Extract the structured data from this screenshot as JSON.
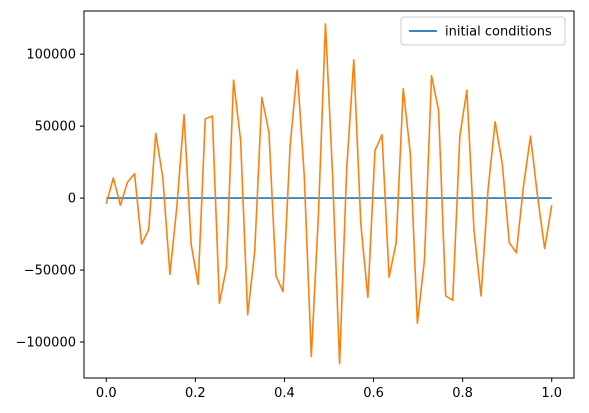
{
  "chart_data": {
    "type": "line",
    "title": "",
    "xlabel": "",
    "ylabel": "",
    "xlim": [
      -0.05,
      1.05
    ],
    "ylim": [
      -125000,
      130000
    ],
    "grid": false,
    "legend": {
      "placement": "top-right",
      "entries": [
        "initial conditions"
      ]
    },
    "xticks": [
      0.0,
      0.2,
      0.4,
      0.6,
      0.8,
      1.0
    ],
    "xtick_labels": [
      "0.0",
      "0.2",
      "0.4",
      "0.6",
      "0.8",
      "1.0"
    ],
    "yticks": [
      -100000,
      -50000,
      0,
      50000,
      100000
    ],
    "ytick_labels": [
      "−100000",
      "−50000",
      "0",
      "50000",
      "100000"
    ],
    "series": [
      {
        "name": "initial conditions",
        "color": "#1f77b4",
        "x": [
          0.0,
          1.0
        ],
        "y": [
          0,
          0
        ]
      },
      {
        "color": "#ff7f0e",
        "x": [
          0.0,
          0.0159,
          0.0317,
          0.0476,
          0.0635,
          0.0794,
          0.0952,
          0.1111,
          0.127,
          0.1429,
          0.1587,
          0.1746,
          0.1905,
          0.2063,
          0.2222,
          0.2381,
          0.254,
          0.2698,
          0.2857,
          0.3016,
          0.3175,
          0.3333,
          0.3492,
          0.3651,
          0.381,
          0.3968,
          0.4127,
          0.4286,
          0.4444,
          0.4603,
          0.4762,
          0.4921,
          0.5079,
          0.5238,
          0.5397,
          0.5556,
          0.5714,
          0.5873,
          0.6032,
          0.619,
          0.6349,
          0.6508,
          0.6667,
          0.6825,
          0.6984,
          0.7143,
          0.7302,
          0.746,
          0.7619,
          0.7778,
          0.7937,
          0.8095,
          0.8254,
          0.8413,
          0.8571,
          0.873,
          0.8889,
          0.9048,
          0.9206,
          0.9365,
          0.9524,
          0.9683,
          0.9841,
          1.0
        ],
        "y": [
          -4000,
          14000,
          -5000,
          11000,
          17000,
          -32000,
          -22000,
          45000,
          14000,
          -53000,
          -5000,
          58000,
          -32000,
          -60000,
          55000,
          57000,
          -73000,
          -48000,
          82000,
          40000,
          -81000,
          -37000,
          70000,
          46000,
          -54000,
          -65000,
          36000,
          89000,
          16000,
          -110000,
          -12000,
          121000,
          17000,
          -115000,
          20000,
          96000,
          -18000,
          -69000,
          33000,
          44000,
          -55000,
          -31000,
          76000,
          31000,
          -87000,
          -43000,
          85000,
          61000,
          -68000,
          -71000,
          43000,
          75000,
          -22000,
          -68000,
          6000,
          53000,
          24000,
          -31000,
          -38000,
          8000,
          43000,
          1000,
          -35000,
          -5000
        ]
      }
    ]
  }
}
